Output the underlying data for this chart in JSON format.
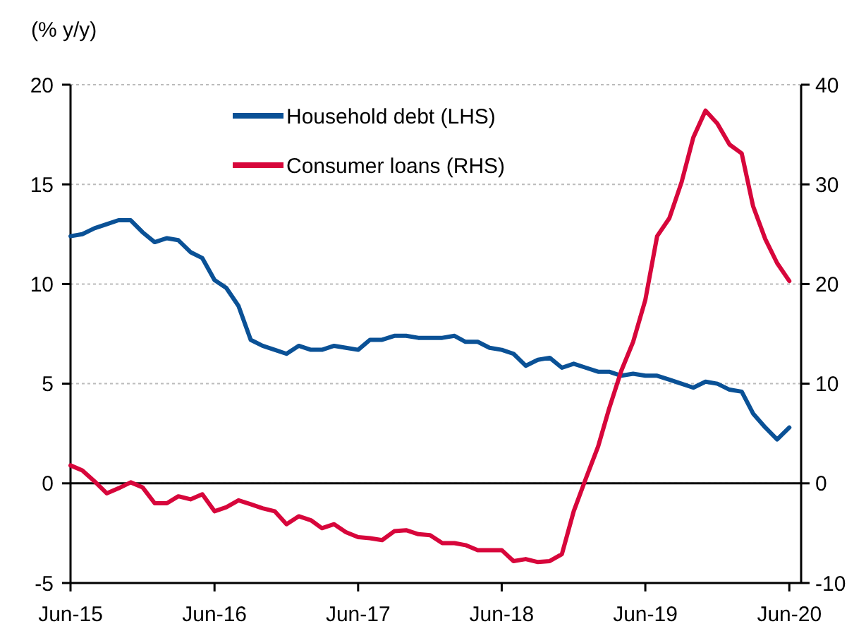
{
  "chart_data": {
    "type": "line",
    "ylabel": "(% y/y)",
    "x": [
      "2015-06",
      "2015-07",
      "2015-08",
      "2015-09",
      "2015-10",
      "2015-11",
      "2015-12",
      "2016-01",
      "2016-02",
      "2016-03",
      "2016-04",
      "2016-05",
      "2016-06",
      "2016-07",
      "2016-08",
      "2016-09",
      "2016-10",
      "2016-11",
      "2016-12",
      "2017-01",
      "2017-02",
      "2017-03",
      "2017-04",
      "2017-05",
      "2017-06",
      "2017-07",
      "2017-08",
      "2017-09",
      "2017-10",
      "2017-11",
      "2017-12",
      "2018-01",
      "2018-02",
      "2018-03",
      "2018-04",
      "2018-05",
      "2018-06",
      "2018-07",
      "2018-08",
      "2018-09",
      "2018-10",
      "2018-11",
      "2018-12",
      "2019-01",
      "2019-02",
      "2019-03",
      "2019-04",
      "2019-05",
      "2019-06",
      "2019-07",
      "2019-08",
      "2019-09",
      "2019-10",
      "2019-11",
      "2019-12",
      "2020-01",
      "2020-02",
      "2020-03",
      "2020-04",
      "2020-05",
      "2020-06"
    ],
    "series": [
      {
        "name": "Household debt (LHS)",
        "color": "#0a5196",
        "values": [
          12.4,
          12.5,
          12.8,
          13.0,
          13.2,
          13.2,
          12.6,
          12.1,
          12.3,
          12.2,
          11.6,
          11.3,
          10.2,
          9.8,
          8.9,
          7.2,
          6.9,
          6.7,
          6.5,
          6.9,
          6.7,
          6.7,
          6.9,
          6.8,
          6.7,
          7.2,
          7.2,
          7.4,
          7.4,
          7.3,
          7.3,
          7.3,
          7.4,
          7.1,
          7.1,
          6.8,
          6.7,
          6.5,
          5.9,
          6.2,
          6.3,
          5.8,
          6.0,
          5.8,
          5.6,
          5.6,
          5.4,
          5.5,
          5.4,
          5.4,
          5.2,
          5.0,
          4.8,
          5.1,
          5.0,
          4.7,
          4.6,
          3.5,
          2.8,
          2.2,
          2.8
        ]
      },
      {
        "name": "Consumer loans (RHS)",
        "color": "#d7063b",
        "axis": "y2",
        "values": [
          1.8,
          1.3,
          0.2,
          -1,
          -0.5,
          0.1,
          -0.4,
          -2,
          -2,
          -1.3,
          -1.6,
          -1.1,
          -2.8,
          -2.4,
          -1.7,
          -2.1,
          -2.5,
          -2.8,
          -4.1,
          -3.3,
          -3.7,
          -4.5,
          -4.1,
          -4.9,
          -5.4,
          -5.5,
          -5.7,
          -4.8,
          -4.7,
          -5.1,
          -5.2,
          -6,
          -6,
          -6.2,
          -6.7,
          -6.7,
          -6.7,
          -7.8,
          -7.6,
          -7.9,
          -7.8,
          -7.1,
          -2.8,
          0.5,
          3.7,
          7.5,
          11.3,
          14.2,
          18.4,
          24.8,
          26.6,
          30.2,
          34.7,
          37.4,
          36.1,
          34,
          33.1,
          27.8,
          24.5,
          22.1,
          20.3
        ]
      }
    ],
    "xlim": [
      "2015-06",
      "2020-07"
    ],
    "xticks": [
      {
        "value": "2015-06",
        "label": "Jun-15"
      },
      {
        "value": "2016-06",
        "label": "Jun-16"
      },
      {
        "value": "2017-06",
        "label": "Jun-17"
      },
      {
        "value": "2018-06",
        "label": "Jun-18"
      },
      {
        "value": "2019-06",
        "label": "Jun-19"
      },
      {
        "value": "2020-06",
        "label": "Jun-20"
      }
    ],
    "ylim": [
      -5,
      20
    ],
    "yticks": [
      -5,
      0,
      5,
      10,
      15,
      20
    ],
    "y2lim": [
      -10,
      40
    ],
    "y2ticks": [
      -10,
      0,
      10,
      20,
      30,
      40
    ],
    "ref_lines": [
      {
        "axis": "y",
        "value": 0,
        "color": "#000000"
      }
    ],
    "grid": "y",
    "legend": "top left",
    "marker": "none",
    "line_style": "solid"
  }
}
